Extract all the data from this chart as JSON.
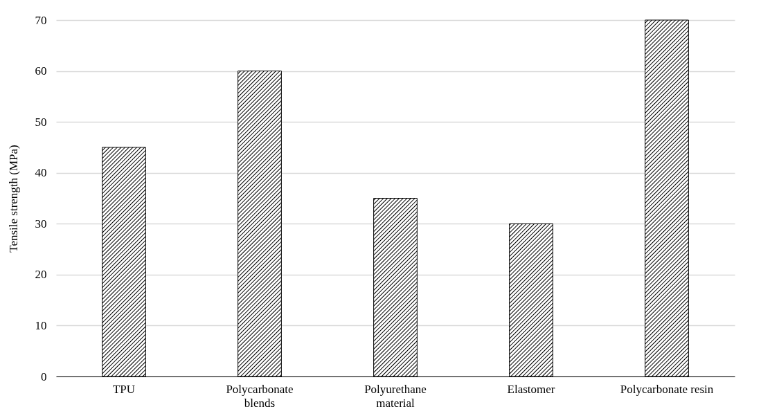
{
  "chart_data": {
    "type": "bar",
    "ylabel": "Tensile strength (MPa)",
    "categories": [
      "TPU",
      "Polycarbonate blends",
      "Polyurethane material",
      "Elastomer",
      "Polycarbonate resin"
    ],
    "values": [
      45,
      60,
      35,
      30,
      70
    ],
    "color": "#000000",
    "ylim": [
      0,
      70
    ],
    "yticks": [
      0,
      10,
      20,
      30,
      40,
      50,
      60,
      70
    ],
    "grid": "y"
  }
}
